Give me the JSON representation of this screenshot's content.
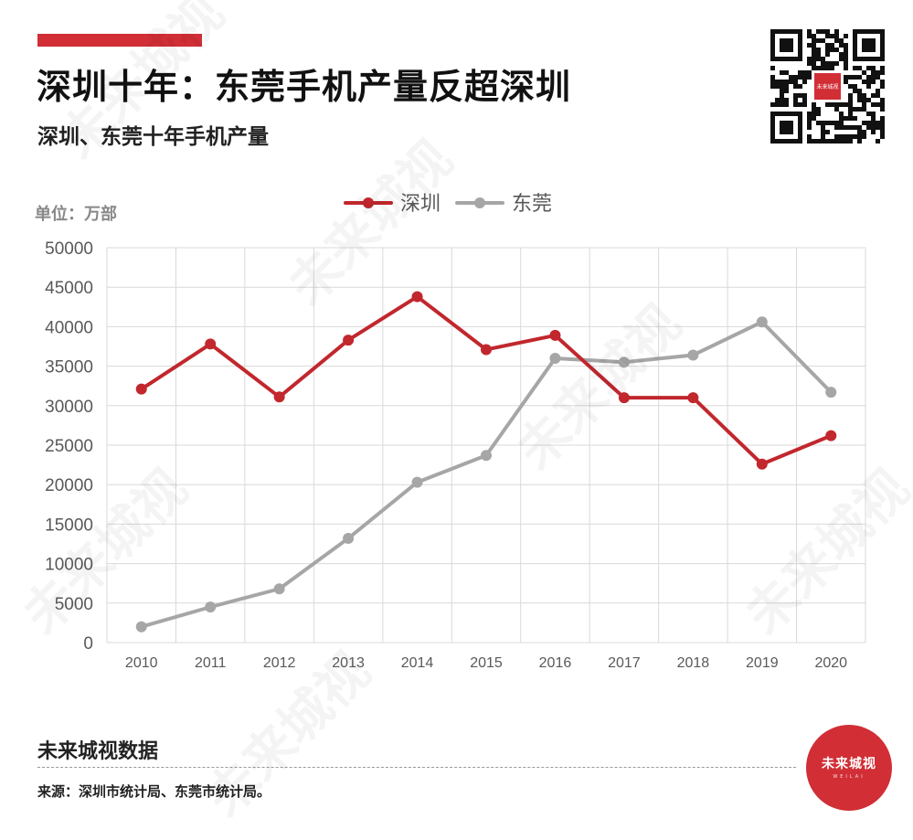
{
  "header": {
    "title": "深圳十年：东莞手机产量反超深圳",
    "subtitle": "深圳、东莞十年手机产量",
    "qr_badge": "未来城视"
  },
  "unit_label": "单位：万部",
  "chart_data": {
    "type": "line",
    "title": "",
    "xlabel": "",
    "ylabel": "",
    "x": [
      "2010",
      "2011",
      "2012",
      "2013",
      "2014",
      "2015",
      "2016",
      "2017",
      "2018",
      "2019",
      "2020"
    ],
    "ylim": [
      0,
      50000
    ],
    "yticks": [
      0,
      5000,
      10000,
      15000,
      20000,
      25000,
      30000,
      35000,
      40000,
      45000,
      50000
    ],
    "grid": true,
    "legend_position": "top-center",
    "series": [
      {
        "name": "深圳",
        "color": "#c1272d",
        "values": [
          32100,
          37800,
          31100,
          38300,
          43800,
          37100,
          38900,
          31000,
          31000,
          22600,
          26200
        ]
      },
      {
        "name": "东莞",
        "color": "#a6a6a6",
        "values": [
          2000,
          4500,
          6800,
          13200,
          20300,
          23700,
          36000,
          35500,
          36400,
          40600,
          31700
        ]
      }
    ]
  },
  "footer": {
    "brand": "未来城视数据",
    "source": "来源：深圳市统计局、东莞市统计局。",
    "logo_text": "未来城视",
    "logo_sub": "WEILAI"
  },
  "watermark": {
    "text": "未来城视",
    "sub": "WEILAI"
  },
  "colors": {
    "accent": "#d12e36",
    "shenzhen": "#c1272d",
    "dongguan": "#a6a6a6",
    "grid": "#d9d9d9"
  }
}
